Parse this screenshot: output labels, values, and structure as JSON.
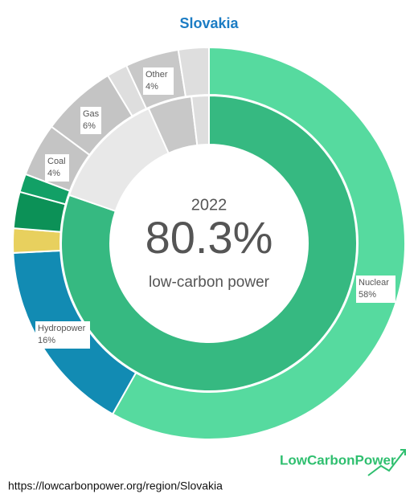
{
  "chart_data": {
    "type": "donut",
    "title": "Slovakia",
    "year": "2022",
    "center_caption": "low-carbon power",
    "source_url": "https://lowcarbonpower.org/region/Slovakia",
    "brand": "LowCarbonPower",
    "outer": {
      "categories": [
        "Nuclear",
        "Hydropower",
        null,
        null,
        null,
        "Coal",
        "Gas",
        null,
        "Other",
        null
      ],
      "values": [
        58,
        16,
        2,
        3,
        1.5,
        4.4,
        6.2,
        1.7,
        4.4,
        2.5
      ],
      "value_labels": [
        "58%",
        "16%",
        null,
        null,
        null,
        "4%",
        "6%",
        null,
        "4%",
        null
      ],
      "colors": [
        "#56da9f",
        "#128bb3",
        "#e8d05e",
        "#0c9157",
        "#12a066",
        "#c4c4c4",
        "#c4c4c4",
        "#dedede",
        "#c8c8c8",
        "#dedede"
      ]
    },
    "inner": {
      "values": [
        80.3,
        13,
        4.8,
        1.9
      ],
      "value_labels": [
        "80.3%",
        null,
        null,
        null
      ],
      "colors": [
        "#36b981",
        "#e8e8e8",
        "#c8c8c8",
        "#dedede"
      ]
    }
  }
}
